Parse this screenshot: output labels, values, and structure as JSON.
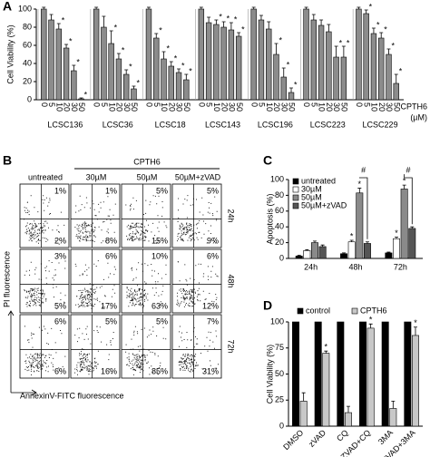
{
  "chart_data": [
    {
      "label": "A",
      "type": "grouped-bar",
      "ylabel": "Cell Viability (%)",
      "ylim": [
        0,
        100
      ],
      "yticks": [
        0,
        20,
        40,
        60,
        80,
        100
      ],
      "categories": [
        "0",
        "5",
        "10",
        "20",
        "30",
        "50"
      ],
      "color": "#8c8c8c",
      "star": "*",
      "legend_title": "CPTH6",
      "legend_unit": "(µM)",
      "groups": [
        {
          "name": "LCSC136",
          "values": [
            100,
            88,
            78,
            57,
            32,
            1
          ],
          "errors": [
            2,
            6,
            6,
            4,
            6,
            1
          ],
          "starred": [
            false,
            false,
            true,
            true,
            true,
            true
          ]
        },
        {
          "name": "LCSC36",
          "values": [
            100,
            80,
            62,
            45,
            28,
            12
          ],
          "errors": [
            2,
            12,
            14,
            6,
            5,
            3
          ],
          "starred": [
            false,
            false,
            true,
            true,
            true,
            true
          ]
        },
        {
          "name": "LCSC18",
          "values": [
            100,
            68,
            45,
            37,
            30,
            22
          ],
          "errors": [
            2,
            5,
            8,
            5,
            4,
            6
          ],
          "starred": [
            false,
            true,
            true,
            true,
            true,
            true
          ]
        },
        {
          "name": "LCSC143",
          "values": [
            100,
            85,
            83,
            80,
            77,
            70
          ],
          "errors": [
            2,
            6,
            5,
            6,
            8,
            4
          ],
          "starred": [
            false,
            false,
            true,
            true,
            true,
            true
          ]
        },
        {
          "name": "LCSC196",
          "values": [
            100,
            88,
            78,
            50,
            25,
            8
          ],
          "errors": [
            2,
            5,
            8,
            12,
            10,
            5
          ],
          "starred": [
            false,
            false,
            false,
            true,
            true,
            true
          ]
        },
        {
          "name": "LCSC223",
          "values": [
            100,
            88,
            82,
            75,
            47,
            47
          ],
          "errors": [
            2,
            6,
            6,
            8,
            12,
            12
          ],
          "starred": [
            false,
            false,
            false,
            false,
            true,
            true
          ]
        },
        {
          "name": "LCSC229",
          "values": [
            100,
            95,
            73,
            68,
            50,
            18
          ],
          "errors": [
            2,
            4,
            6,
            6,
            6,
            10
          ],
          "starred": [
            false,
            true,
            true,
            true,
            true,
            true
          ]
        }
      ]
    },
    {
      "label": "C",
      "type": "bar",
      "ylabel": "Apoptosis (%)",
      "ylim": [
        0,
        100
      ],
      "yticks": [
        0,
        20,
        40,
        60,
        80,
        100
      ],
      "categories": [
        "24h",
        "48h",
        "72h"
      ],
      "legend": "upper left",
      "star": "*",
      "bracket": "#",
      "bracketed": [
        false,
        true,
        true
      ],
      "series": [
        {
          "name": "untreated",
          "color": "#000000",
          "values": [
            3,
            6,
            7
          ],
          "errors": [
            1,
            1,
            1
          ],
          "starred": [
            false,
            false,
            false
          ]
        },
        {
          "name": "30µM",
          "color": "#ffffff",
          "values": [
            10,
            21,
            25
          ],
          "errors": [
            1,
            2,
            2
          ],
          "starred": [
            false,
            true,
            true
          ]
        },
        {
          "name": "50µM",
          "color": "#8a8a8a",
          "values": [
            20,
            83,
            88
          ],
          "errors": [
            2,
            6,
            5
          ],
          "starred": [
            false,
            true,
            true
          ]
        },
        {
          "name": "50µM+zVAD",
          "color": "#555555",
          "values": [
            15,
            19,
            38
          ],
          "errors": [
            2,
            2,
            2
          ],
          "starred": [
            false,
            false,
            false
          ]
        }
      ]
    },
    {
      "label": "D",
      "type": "bar",
      "ylabel": "Cell Viability (%)",
      "ylim": [
        0,
        100
      ],
      "yticks": [
        0,
        25,
        50,
        75,
        100
      ],
      "categories": [
        "DMSO",
        "zVAD",
        "CQ",
        "ZVAD+CQ",
        "3MA",
        "ZVAD+3MA"
      ],
      "legend": "top",
      "star": "*",
      "series": [
        {
          "name": "control",
          "color": "#000000",
          "values": [
            100,
            100,
            100,
            100,
            100,
            100
          ],
          "starred": [
            false,
            false,
            false,
            false,
            false,
            false
          ]
        },
        {
          "name": "CPTH6",
          "color": "#c8c8c8",
          "values": [
            24,
            70,
            13,
            94,
            17,
            87
          ],
          "errors": [
            8,
            2,
            6,
            4,
            7,
            8
          ],
          "starred": [
            false,
            true,
            false,
            true,
            false,
            true
          ]
        }
      ]
    }
  ],
  "flow_panel": {
    "label": "B",
    "title": "CPTH6",
    "columns": [
      "untreated",
      "30µM",
      "50µM",
      "50µM+zVAD"
    ],
    "rows": [
      "24h",
      "48h",
      "72h"
    ],
    "ylabel": "PI fluorescence",
    "xlabel": "AnnexinV-FITC fluorescence",
    "cells": [
      [
        [
          "1%",
          "2%"
        ],
        [
          "1%",
          "8%"
        ],
        [
          "5%",
          "15%"
        ],
        [
          "5%",
          "9%"
        ]
      ],
      [
        [
          "3%",
          "5%"
        ],
        [
          "6%",
          "17%"
        ],
        [
          "10%",
          "63%"
        ],
        [
          "6%",
          "12%"
        ]
      ],
      [
        [
          "6%",
          "6%"
        ],
        [
          "5%",
          "16%"
        ],
        [
          "5%",
          "85%"
        ],
        [
          "7%",
          "31%"
        ]
      ]
    ]
  }
}
